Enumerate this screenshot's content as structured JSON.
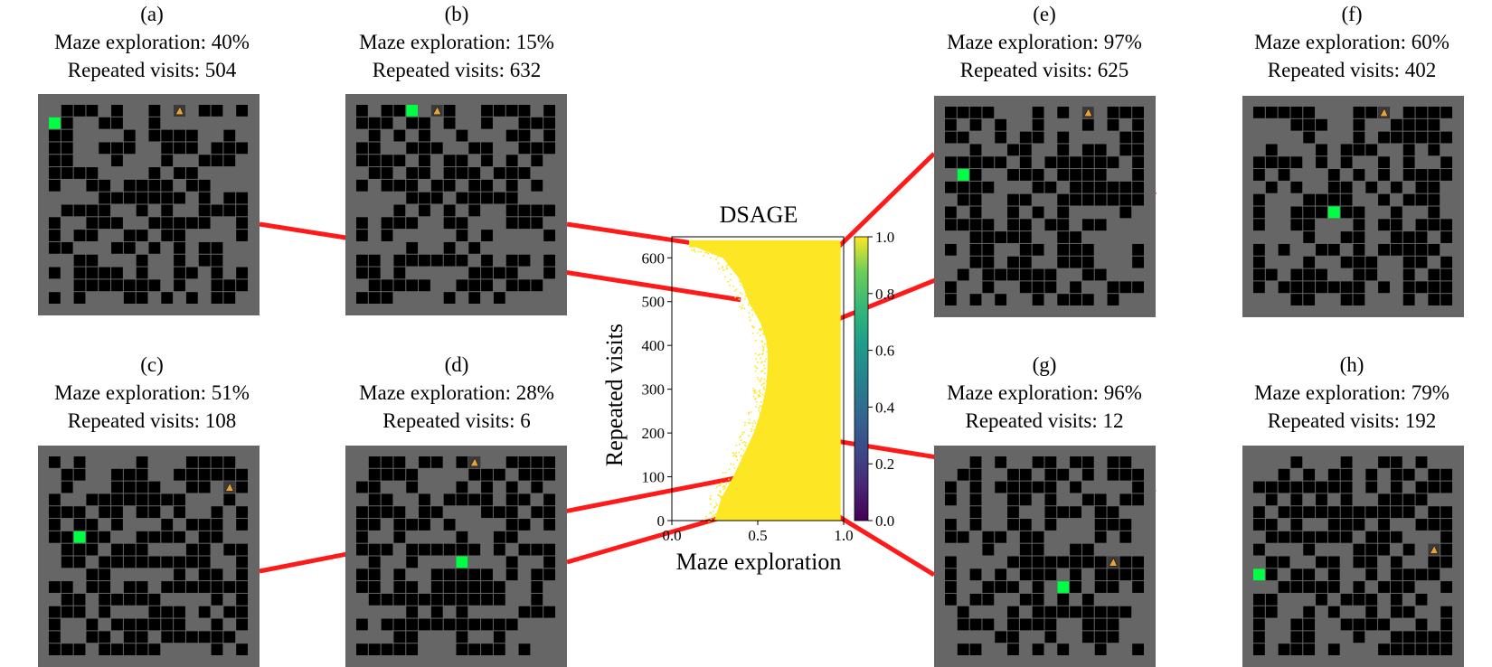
{
  "panels": [
    {
      "id": "a",
      "label": "(a)",
      "exploration": "Maze exploration: 40%",
      "visits": "Repeated visits: 504",
      "x": 0.4,
      "y": 504
    },
    {
      "id": "b",
      "label": "(b)",
      "exploration": "Maze exploration: 15%",
      "visits": "Repeated visits: 632",
      "x": 0.15,
      "y": 632
    },
    {
      "id": "c",
      "label": "(c)",
      "exploration": "Maze exploration: 51%",
      "visits": "Repeated visits: 108",
      "x": 0.51,
      "y": 108
    },
    {
      "id": "d",
      "label": "(d)",
      "exploration": "Maze exploration: 28%",
      "visits": "Repeated visits: 6",
      "x": 0.28,
      "y": 6
    },
    {
      "id": "e",
      "label": "(e)",
      "exploration": "Maze exploration: 97%",
      "visits": "Repeated visits: 625",
      "x": 0.97,
      "y": 625
    },
    {
      "id": "f",
      "label": "(f)",
      "exploration": "Maze exploration: 60%",
      "visits": "Repeated visits: 402",
      "x": 0.6,
      "y": 402
    },
    {
      "id": "g",
      "label": "(g)",
      "exploration": "Maze exploration: 96%",
      "visits": "Repeated visits: 12",
      "x": 0.96,
      "y": 12
    },
    {
      "id": "h",
      "label": "(h)",
      "exploration": "Maze exploration: 79%",
      "visits": "Repeated visits: 192",
      "x": 0.79,
      "y": 192
    }
  ],
  "chart_data": {
    "type": "heatmap",
    "title": "DSAGE",
    "xlabel": "Maze exploration",
    "ylabel": "Repeated visits",
    "xlim": [
      0.0,
      1.0
    ],
    "ylim": [
      0,
      648
    ],
    "xticks": [
      "0.0",
      "0.5",
      "1.0"
    ],
    "xtick_values": [
      0.0,
      0.5,
      1.0
    ],
    "yticks": [
      "0",
      "100",
      "200",
      "300",
      "400",
      "500",
      "600"
    ],
    "ytick_values": [
      0,
      100,
      200,
      300,
      400,
      500,
      600
    ],
    "colorbar": {
      "ticks": [
        "0.0",
        "0.2",
        "0.4",
        "0.6",
        "0.8",
        "1.0"
      ],
      "tick_values": [
        0.0,
        0.2,
        0.4,
        0.6,
        0.8,
        1.0
      ],
      "colormap": "viridis"
    },
    "fill_color": "#fde725",
    "coverage_boundary": {
      "repeated_visits": [
        0,
        50,
        100,
        150,
        200,
        250,
        300,
        350,
        400,
        450,
        500,
        550,
        600,
        632
      ],
      "min_exploration": [
        0.25,
        0.29,
        0.36,
        0.42,
        0.48,
        0.52,
        0.55,
        0.56,
        0.56,
        0.52,
        0.45,
        0.4,
        0.3,
        0.1
      ],
      "max_exploration": [
        0.98,
        0.98,
        0.98,
        0.98,
        0.98,
        0.98,
        0.98,
        0.98,
        0.98,
        0.98,
        0.98,
        0.98,
        0.98,
        0.98
      ]
    },
    "grid": false,
    "connector_color": "#ff1a1a"
  },
  "maze_colors": {
    "floor": "#666666",
    "wall": "#000000",
    "goal": "#00ff44",
    "agent": "#e8a23a"
  },
  "icons": {
    "agent": "agent-triangle-icon",
    "goal": "goal-square-icon"
  }
}
